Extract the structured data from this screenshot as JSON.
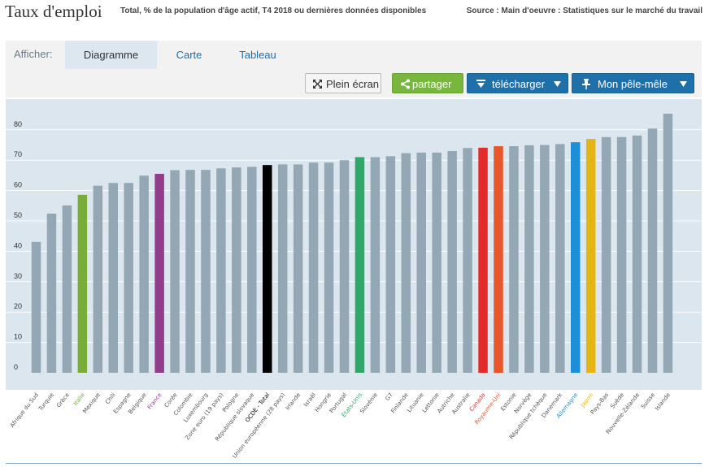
{
  "header": {
    "title": "Taux d'emploi",
    "subtitle": "Total, % de la population d'âge actif, T4 2018 ou dernières données disponibles",
    "source": "Source : Main d'oeuvre : Statistiques sur le marché du travail"
  },
  "toolbar": {
    "afficher_label": "Afficher:",
    "tabs": [
      "Diagramme",
      "Carte",
      "Tableau"
    ],
    "active_tab": "Diagramme",
    "fullscreen_label": "Plein écran",
    "share_label": "partager",
    "download_label": "télécharger",
    "pin_label": "Mon pêle-mêle"
  },
  "colors": {
    "default_bar": "#93a8b4",
    "Italie": "#7aac3c",
    "France": "#903d8c",
    "OCDE - Total": "#000000",
    "États-Unis": "#2fa86a",
    "Canada": "#e22b2b",
    "Royaume-Uni": "#e8572b",
    "Allemagne": "#1c8fd6",
    "Japon": "#e6b514"
  },
  "chart_data": {
    "type": "bar",
    "ylim": [
      0,
      90
    ],
    "yticks": [
      0,
      10,
      20,
      30,
      40,
      50,
      60,
      70,
      80
    ],
    "grid": true,
    "categories": [
      "Afrique du Sud",
      "Turquie",
      "Grèce",
      "Italie",
      "Mexique",
      "Chili",
      "Espagne",
      "Belgique",
      "France",
      "Corée",
      "Colombie",
      "Luxembourg",
      "Zone euro (19 pays)",
      "Pologne",
      "République slovaque",
      "OCDE - Total",
      "Union européenne (28 pays)",
      "Irlande",
      "Israël",
      "Hongrie",
      "Portugal",
      "États-Unis",
      "Slovénie",
      "G7",
      "Finlande",
      "Lituanie",
      "Lettonie",
      "Autriche",
      "Australie",
      "Canada",
      "Royaume-Uni",
      "Estonie",
      "Norvège",
      "République tchèque",
      "Danemark",
      "Allemagne",
      "Japon",
      "Pays-Bas",
      "Suède",
      "Nouvelle-Zélande",
      "Suisse",
      "Islande"
    ],
    "values": [
      43.1,
      52.4,
      55.1,
      58.6,
      61.6,
      62.5,
      62.5,
      64.9,
      65.5,
      66.7,
      66.8,
      66.8,
      67.3,
      67.6,
      67.8,
      68.4,
      68.6,
      68.6,
      69.2,
      69.2,
      70.0,
      71.0,
      71.0,
      71.3,
      72.3,
      72.5,
      72.5,
      73.0,
      74.0,
      74.1,
      74.6,
      74.6,
      74.9,
      75.0,
      75.3,
      75.9,
      77.0,
      77.6,
      77.6,
      78.1,
      80.4,
      85.3
    ]
  }
}
